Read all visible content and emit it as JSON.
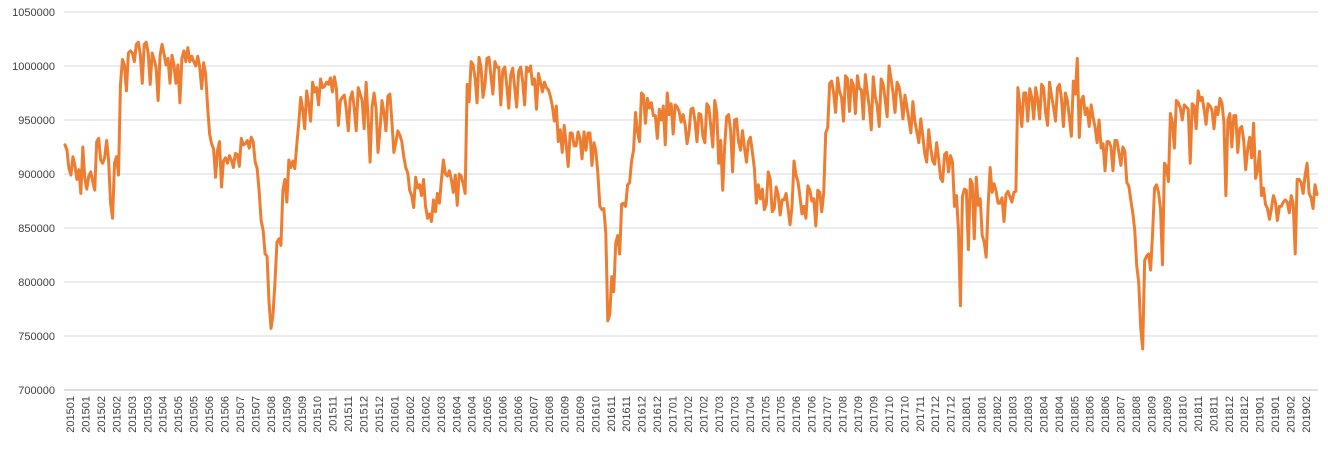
{
  "chart_data": {
    "type": "line",
    "title": "",
    "xlabel": "",
    "ylabel": "",
    "ylim": [
      700000,
      1050000
    ],
    "yticks": [
      700000,
      750000,
      800000,
      850000,
      900000,
      950000,
      1000000,
      1050000
    ],
    "ytick_labels": [
      "700000",
      "750000",
      "800000",
      "850000",
      "900000",
      "950000",
      "1000000",
      "1050000"
    ],
    "grid": true,
    "legend": "none",
    "line_color": "#ED7D31",
    "xtick_labels": [
      "201501",
      "201501",
      "201502",
      "201502",
      "201503",
      "201503",
      "201504",
      "201505",
      "201505",
      "201506",
      "201506",
      "201507",
      "201507",
      "201508",
      "201509",
      "201509",
      "201510",
      "201511",
      "201511",
      "201512",
      "201512",
      "201601",
      "201602",
      "201602",
      "201603",
      "201604",
      "201604",
      "201605",
      "201606",
      "201606",
      "201607",
      "201608",
      "201609",
      "201609",
      "201610",
      "201611",
      "201611",
      "201612",
      "201612",
      "201701",
      "201702",
      "201702",
      "201703",
      "201703",
      "201704",
      "201705",
      "201705",
      "201706",
      "201706",
      "201707",
      "201708",
      "201709",
      "201709",
      "201710",
      "201710",
      "201711",
      "201712",
      "201712",
      "201801",
      "201801",
      "201802",
      "201803",
      "201803",
      "201804",
      "201804",
      "201805",
      "201806",
      "201806",
      "201807",
      "201808",
      "201809",
      "201809",
      "201810",
      "201811",
      "201811",
      "201812",
      "201812",
      "201901",
      "201901",
      "201902",
      "201902"
    ],
    "series": [
      {
        "values": [
          927000,
          922000,
          905000,
          899000,
          916000,
          908000,
          895000,
          904000,
          882000,
          925000,
          896000,
          886000,
          898000,
          902000,
          893000,
          885000,
          930000,
          933000,
          913000,
          910000,
          915000,
          931000,
          913000,
          873000,
          859000,
          910000,
          916000,
          899000,
          983000,
          1006000,
          1001000,
          977000,
          1012000,
          1014000,
          1012000,
          1004000,
          1020000,
          1022000,
          1011000,
          984000,
          1020000,
          1022000,
          1012000,
          983000,
          1012000,
          1006000,
          998000,
          968000,
          1010000,
          1020000,
          1011000,
          1001000,
          1007000,
          984000,
          1010000,
          1001000,
          984000,
          1001000,
          966000,
          1007000,
          1014000,
          1004000,
          1017000,
          1004000,
          1009000,
          1004000,
          1000000,
          1009000,
          999000,
          979000,
          1003000,
          992000,
          962000,
          937000,
          928000,
          923000,
          897000,
          922000,
          930000,
          888000,
          912000,
          915000,
          910000,
          917000,
          913000,
          906000,
          919000,
          918000,
          907000,
          933000,
          927000,
          928000,
          931000,
          924000,
          934000,
          930000,
          911000,
          905000,
          884000,
          857000,
          848000,
          826000,
          824000,
          781000,
          757000,
          770000,
          800000,
          837000,
          840000,
          834000,
          885000,
          895000,
          874000,
          913000,
          906000,
          912000,
          905000,
          927000,
          947000,
          971000,
          960000,
          942000,
          977000,
          965000,
          949000,
          985000,
          976000,
          980000,
          964000,
          988000,
          980000,
          981000,
          985000,
          983000,
          989000,
          976000,
          990000,
          979000,
          945000,
          968000,
          971000,
          973000,
          960000,
          940000,
          970000,
          976000,
          961000,
          940000,
          980000,
          974000,
          968000,
          942000,
          985000,
          952000,
          911000,
          962000,
          975000,
          961000,
          920000,
          941000,
          968000,
          957000,
          940000,
          972000,
          974000,
          949000,
          920000,
          929000,
          940000,
          936000,
          930000,
          916000,
          906000,
          901000,
          885000,
          880000,
          869000,
          897000,
          887000,
          890000,
          880000,
          895000,
          870000,
          859000,
          863000,
          856000,
          876000,
          865000,
          882000,
          873000,
          894000,
          913000,
          900000,
          898000,
          903000,
          895000,
          883000,
          899000,
          871000,
          900000,
          898000,
          891000,
          882000,
          983000,
          967000,
          1004000,
          1001000,
          989000,
          966000,
          1008000,
          999000,
          971000,
          983000,
          1007000,
          1008000,
          991000,
          974000,
          1004000,
          999000,
          999000,
          964000,
          996000,
          999000,
          982000,
          961000,
          992000,
          998000,
          980000,
          962000,
          995000,
          999000,
          986000,
          964000,
          999000,
          995000,
          1000000,
          983000,
          988000,
          960000,
          993000,
          985000,
          976000,
          985000,
          980000,
          978000,
          972000,
          963000,
          949000,
          963000,
          930000,
          941000,
          920000,
          945000,
          927000,
          907000,
          938000,
          938000,
          926000,
          926000,
          939000,
          933000,
          914000,
          939000,
          922000,
          938000,
          938000,
          908000,
          929000,
          921000,
          900000,
          870000,
          867000,
          868000,
          845000,
          764000,
          770000,
          805000,
          791000,
          836000,
          843000,
          826000,
          872000,
          873000,
          870000,
          890000,
          892000,
          912000,
          922000,
          957000,
          939000,
          930000,
          975000,
          973000,
          947000,
          970000,
          961000,
          966000,
          954000,
          954000,
          933000,
          960000,
          950000,
          963000,
          927000,
          975000,
          955000,
          965000,
          937000,
          964000,
          962000,
          958000,
          948000,
          955000,
          946000,
          928000,
          939000,
          960000,
          961000,
          949000,
          930000,
          956000,
          955000,
          935000,
          929000,
          965000,
          962000,
          944000,
          925000,
          968000,
          957000,
          910000,
          931000,
          885000,
          926000,
          953000,
          955000,
          940000,
          902000,
          950000,
          951000,
          930000,
          922000,
          940000,
          924000,
          911000,
          930000,
          934000,
          920000,
          905000,
          873000,
          890000,
          877000,
          886000,
          867000,
          872000,
          902000,
          895000,
          865000,
          868000,
          888000,
          881000,
          862000,
          876000,
          876000,
          882000,
          868000,
          853000,
          870000,
          912000,
          899000,
          893000,
          879000,
          863000,
          870000,
          859000,
          889000,
          885000,
          875000,
          877000,
          852000,
          885000,
          883000,
          865000,
          883000,
          938000,
          943000,
          984000,
          986000,
          975000,
          957000,
          989000,
          976000,
          971000,
          949000,
          991000,
          988000,
          958000,
          987000,
          982000,
          956000,
          991000,
          979000,
          978000,
          951000,
          992000,
          976000,
          962000,
          941000,
          990000,
          972000,
          963000,
          944000,
          988000,
          983000,
          969000,
          953000,
          1000000,
          988000,
          975000,
          957000,
          985000,
          981000,
          969000,
          951000,
          973000,
          962000,
          950000,
          938000,
          967000,
          949000,
          939000,
          929000,
          951000,
          935000,
          919000,
          911000,
          941000,
          924000,
          912000,
          909000,
          929000,
          914000,
          896000,
          893000,
          918000,
          920000,
          902000,
          917000,
          911000,
          870000,
          880000,
          848000,
          778000,
          879000,
          886000,
          885000,
          830000,
          895000,
          891000,
          840000,
          897000,
          871000,
          877000,
          843000,
          837000,
          823000,
          871000,
          906000,
          883000,
          891000,
          884000,
          873000,
          873000,
          878000,
          856000,
          881000,
          884000,
          879000,
          874000,
          883000,
          884000,
          980000,
          964000,
          944000,
          975000,
          975000,
          949000,
          979000,
          971000,
          951000,
          980000,
          969000,
          951000,
          983000,
          980000,
          957000,
          945000,
          985000,
          972000,
          962000,
          949000,
          980000,
          983000,
          970000,
          944000,
          975000,
          968000,
          952000,
          935000,
          986000,
          974000,
          1007000,
          934000,
          968000,
          972000,
          955000,
          961000,
          944000,
          964000,
          952000,
          943000,
          929000,
          950000,
          924000,
          928000,
          903000,
          930000,
          930000,
          925000,
          903000,
          931000,
          931000,
          920000,
          908000,
          925000,
          921000,
          892000,
          889000,
          876000,
          864000,
          848000,
          815000,
          800000,
          758000,
          738000,
          820000,
          824000,
          826000,
          811000,
          845000,
          887000,
          890000,
          883000,
          868000,
          816000,
          910000,
          907000,
          893000,
          956000,
          948000,
          924000,
          968000,
          966000,
          961000,
          950000,
          964000,
          962000,
          960000,
          910000,
          965000,
          963000,
          942000,
          977000,
          968000,
          971000,
          960000,
          946000,
          965000,
          963000,
          959000,
          942000,
          962000,
          955000,
          970000,
          966000,
          948000,
          880000,
          950000,
          956000,
          925000,
          954000,
          954000,
          920000,
          942000,
          944000,
          931000,
          904000,
          923000,
          934000,
          915000,
          947000,
          896000,
          903000,
          921000,
          880000,
          887000,
          872000,
          868000,
          858000,
          868000,
          880000,
          874000,
          857000,
          870000,
          870000,
          874000,
          876000,
          874000,
          864000,
          880000,
          872000,
          826000,
          895000,
          895000,
          892000,
          882000,
          899000,
          910000,
          882000,
          878000,
          868000,
          890000,
          881000
        ]
      }
    ]
  }
}
